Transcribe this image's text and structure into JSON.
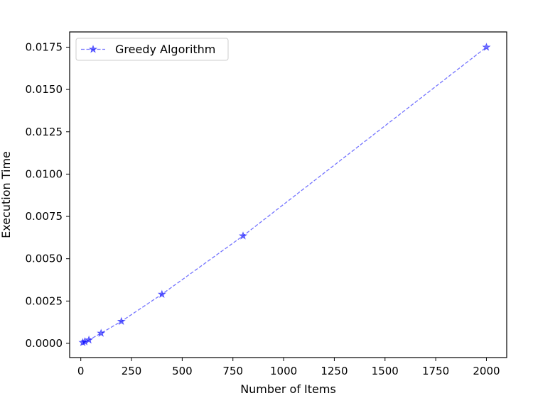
{
  "chart_data": {
    "type": "line",
    "xlabel": "Number of Items",
    "ylabel": "Execution Time",
    "xlim": [
      -55,
      2100
    ],
    "ylim": [
      -0.00084,
      0.0184
    ],
    "xticks": [
      0,
      250,
      500,
      750,
      1000,
      1250,
      1500,
      1750,
      2000
    ],
    "yticks": [
      0.0,
      0.0025,
      0.005,
      0.0075,
      0.01,
      0.0125,
      0.015,
      0.0175
    ],
    "ytick_labels": [
      "0.0000",
      "0.0025",
      "0.0050",
      "0.0075",
      "0.0100",
      "0.0125",
      "0.0150",
      "0.0175"
    ],
    "grid": false,
    "legend_position": "top-left",
    "series": [
      {
        "name": "Greedy Algorithm",
        "color": "#0000ff",
        "line_style": "dashed",
        "marker": "star",
        "x": [
          10,
          20,
          40,
          100,
          200,
          400,
          800,
          2000
        ],
        "y": [
          5e-05,
          0.0001,
          0.0002,
          0.0006,
          0.0013,
          0.0029,
          0.00635,
          0.0175
        ]
      }
    ]
  }
}
